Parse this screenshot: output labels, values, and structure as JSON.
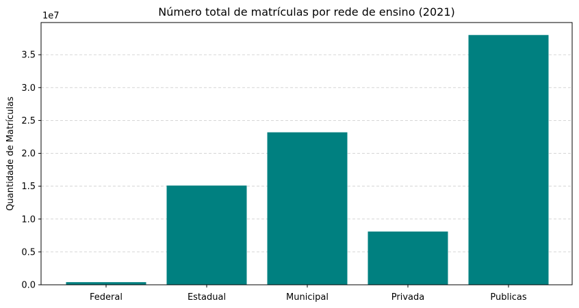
{
  "chart_data": {
    "type": "bar",
    "title": "Número total de matrículas por rede de ensino (2021)",
    "xlabel": "",
    "ylabel": "Quantidade de Matrículas",
    "offset_label": "1e7",
    "categories": [
      "Federal",
      "Estadual",
      "Municipal",
      "Privada",
      "Publicas"
    ],
    "values": [
      400000,
      15100000,
      23200000,
      8100000,
      38000000
    ],
    "yticks": [
      0,
      5000000,
      10000000,
      15000000,
      20000000,
      25000000,
      30000000,
      35000000
    ],
    "ytick_labels": [
      "0.0",
      "0.5",
      "1.0",
      "1.5",
      "2.0",
      "2.5",
      "3.0",
      "3.5"
    ],
    "ylim": [
      0,
      39900000
    ],
    "grid": "y, dashed",
    "bar_color": "#008080"
  }
}
